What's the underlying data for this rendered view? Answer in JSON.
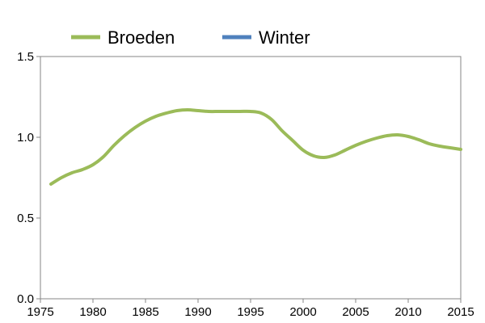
{
  "chart_data": {
    "type": "line",
    "title": "",
    "xlabel": "",
    "ylabel": "",
    "xlim": [
      1975,
      2015
    ],
    "ylim": [
      0.0,
      1.5
    ],
    "x_ticks": [
      "1975",
      "1980",
      "1985",
      "1990",
      "1995",
      "2000",
      "2005",
      "2010",
      "2015"
    ],
    "y_ticks": [
      "0.0",
      "0.5",
      "1.0",
      "1.5"
    ],
    "grid": false,
    "legend_position": "top",
    "series": [
      {
        "name": "Broeden",
        "color": "#9bbb59",
        "x": [
          1976,
          1977,
          1978,
          1979,
          1980,
          1981,
          1982,
          1983,
          1984,
          1985,
          1986,
          1987,
          1988,
          1989,
          1990,
          1991,
          1992,
          1993,
          1994,
          1995,
          1996,
          1997,
          1998,
          1999,
          2000,
          2001,
          2002,
          2003,
          2004,
          2005,
          2006,
          2007,
          2008,
          2009,
          2010,
          2011,
          2012,
          2013,
          2014,
          2015
        ],
        "y": [
          0.71,
          0.75,
          0.78,
          0.8,
          0.83,
          0.88,
          0.95,
          1.01,
          1.06,
          1.1,
          1.13,
          1.15,
          1.165,
          1.17,
          1.165,
          1.16,
          1.16,
          1.16,
          1.16,
          1.16,
          1.15,
          1.11,
          1.04,
          0.98,
          0.92,
          0.885,
          0.875,
          0.89,
          0.92,
          0.95,
          0.975,
          0.995,
          1.01,
          1.015,
          1.005,
          0.985,
          0.96,
          0.945,
          0.935,
          0.925
        ]
      },
      {
        "name": "Winter",
        "color": "#4f81bd",
        "x": [],
        "y": []
      }
    ]
  }
}
